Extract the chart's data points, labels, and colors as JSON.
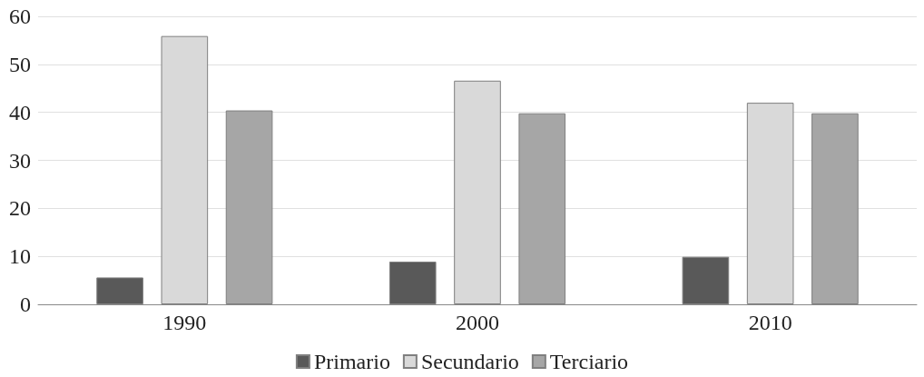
{
  "chart_data": {
    "type": "bar",
    "categories": [
      "1990",
      "2000",
      "2010"
    ],
    "series": [
      {
        "name": "Primario",
        "color": "#595959",
        "values": [
          5.6,
          8.9,
          9.9
        ]
      },
      {
        "name": "Secundario",
        "color": "#d9d9d9",
        "values": [
          55.9,
          46.6,
          42
        ]
      },
      {
        "name": "Terciario",
        "color": "#a6a6a6",
        "values": [
          40.4,
          39.8,
          39.8
        ]
      }
    ],
    "ylim": [
      0,
      60
    ],
    "yticks": [
      0,
      10,
      20,
      30,
      40,
      50,
      60
    ],
    "grid": "y",
    "legend": "bottom"
  }
}
